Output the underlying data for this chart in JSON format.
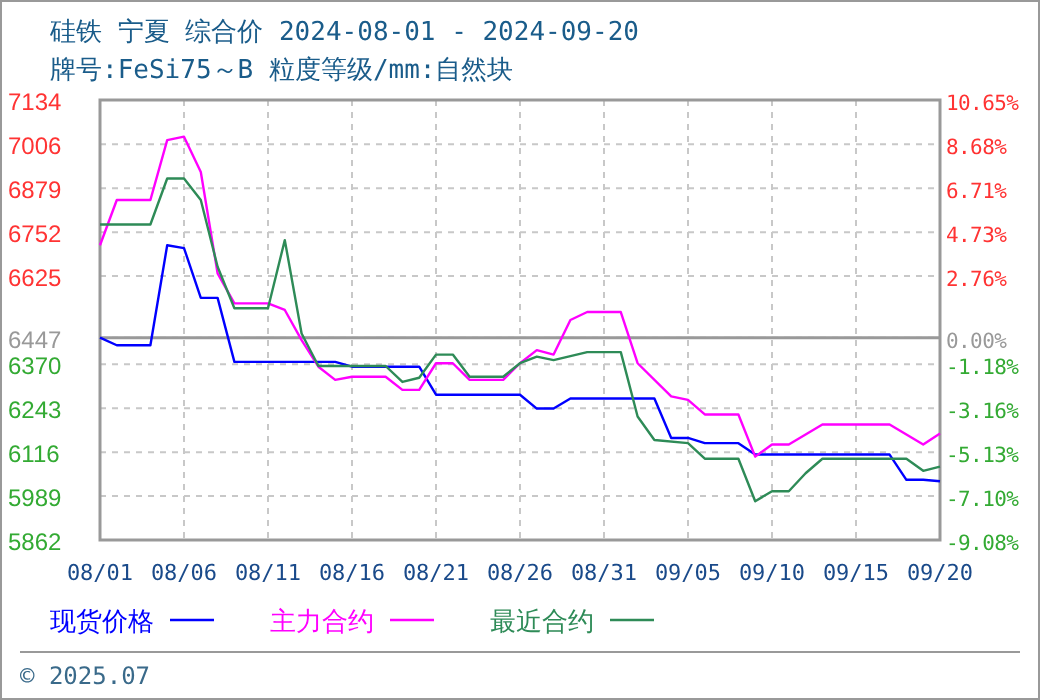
{
  "chart_data": {
    "type": "line",
    "title": "硅铁 宁夏 综合价 2024-08-01 - 2024-09-20",
    "subtitle": "牌号:FeSi75～B 粒度等级/mm:自然块",
    "xlim": [
      "2024-08-01",
      "2024-09-20"
    ],
    "xticks": [
      {
        "value": "2024-08-01",
        "label": "08/01"
      },
      {
        "value": "2024-08-06",
        "label": "08/06"
      },
      {
        "value": "2024-08-11",
        "label": "08/11"
      },
      {
        "value": "2024-08-16",
        "label": "08/16"
      },
      {
        "value": "2024-08-21",
        "label": "08/21"
      },
      {
        "value": "2024-08-26",
        "label": "08/26"
      },
      {
        "value": "2024-08-31",
        "label": "08/31"
      },
      {
        "value": "2024-09-05",
        "label": "09/05"
      },
      {
        "value": "2024-09-10",
        "label": "09/10"
      },
      {
        "value": "2024-09-15",
        "label": "09/15"
      },
      {
        "value": "2024-09-20",
        "label": "09/20"
      }
    ],
    "ylim": [
      5862,
      7134
    ],
    "yticks": [
      5862,
      5989,
      6116,
      6243,
      6370,
      6447,
      6625,
      6752,
      6879,
      7006,
      7134
    ],
    "y2lim": [
      -9.08,
      10.65
    ],
    "y2ticks": [
      {
        "value": -9.08,
        "label": "-9.08%"
      },
      {
        "value": -7.1,
        "label": "-7.10%"
      },
      {
        "value": -5.13,
        "label": "-5.13%"
      },
      {
        "value": -3.16,
        "label": "-3.16%"
      },
      {
        "value": -1.18,
        "label": "-1.18%"
      },
      {
        "value": 0,
        "label": "0.00%"
      },
      {
        "value": 2.76,
        "label": "2.76%"
      },
      {
        "value": 4.73,
        "label": "4.73%"
      },
      {
        "value": 6.71,
        "label": "6.71%"
      },
      {
        "value": 8.68,
        "label": "8.68%"
      },
      {
        "value": 10.65,
        "label": "10.65%"
      }
    ],
    "ref_lines": [
      {
        "axis": "y",
        "value": 6447,
        "color": "#999999"
      }
    ],
    "grid": true,
    "legend": "bottom",
    "line_style": "solid",
    "annotations": [
      "© 2025.07"
    ],
    "series": [
      {
        "name": "现货价格",
        "color": "#0000ff",
        "x": [
          "2024-08-01",
          "2024-08-02",
          "2024-08-04",
          "2024-08-05",
          "2024-08-06",
          "2024-08-07",
          "2024-08-08",
          "2024-08-09",
          "2024-08-15",
          "2024-08-16",
          "2024-08-20",
          "2024-08-21",
          "2024-08-26",
          "2024-08-27",
          "2024-08-28",
          "2024-08-29",
          "2024-09-03",
          "2024-09-04",
          "2024-09-05",
          "2024-09-06",
          "2024-09-08",
          "2024-09-09",
          "2024-09-17",
          "2024-09-18",
          "2024-09-19",
          "2024-09-20"
        ],
        "values": [
          6447,
          6425,
          6425,
          6714,
          6706,
          6562,
          6562,
          6377,
          6377,
          6363,
          6363,
          6282,
          6282,
          6242,
          6242,
          6271,
          6271,
          6157,
          6157,
          6142,
          6142,
          6109,
          6109,
          6036,
          6036,
          6032
        ]
      },
      {
        "name": "主力合约",
        "color": "#ff00ff",
        "x": [
          "2024-08-01",
          "2024-08-02",
          "2024-08-04",
          "2024-08-05",
          "2024-08-06",
          "2024-08-07",
          "2024-08-08",
          "2024-08-09",
          "2024-08-11",
          "2024-08-12",
          "2024-08-13",
          "2024-08-14",
          "2024-08-15",
          "2024-08-16",
          "2024-08-18",
          "2024-08-19",
          "2024-08-20",
          "2024-08-21",
          "2024-08-22",
          "2024-08-23",
          "2024-08-25",
          "2024-08-26",
          "2024-08-27",
          "2024-08-28",
          "2024-08-29",
          "2024-08-30",
          "2024-09-01",
          "2024-09-02",
          "2024-09-04",
          "2024-09-05",
          "2024-09-06",
          "2024-09-08",
          "2024-09-09",
          "2024-09-10",
          "2024-09-11",
          "2024-09-13",
          "2024-09-17",
          "2024-09-19",
          "2024-09-20"
        ],
        "values": [
          6714,
          6845,
          6845,
          7018,
          7028,
          6926,
          6633,
          6546,
          6546,
          6527,
          6440,
          6363,
          6325,
          6334,
          6334,
          6296,
          6296,
          6373,
          6373,
          6325,
          6325,
          6373,
          6411,
          6398,
          6498,
          6521,
          6521,
          6373,
          6277,
          6267,
          6225,
          6225,
          6103,
          6138,
          6138,
          6196,
          6196,
          6138,
          6170
        ]
      },
      {
        "name": "最近合约",
        "color": "#2e8b57",
        "x": [
          "2024-08-01",
          "2024-08-04",
          "2024-08-05",
          "2024-08-06",
          "2024-08-07",
          "2024-08-08",
          "2024-08-09",
          "2024-08-11",
          "2024-08-12",
          "2024-08-13",
          "2024-08-14",
          "2024-08-18",
          "2024-08-19",
          "2024-08-20",
          "2024-08-21",
          "2024-08-22",
          "2024-08-23",
          "2024-08-25",
          "2024-08-26",
          "2024-08-27",
          "2024-08-28",
          "2024-08-30",
          "2024-09-01",
          "2024-09-02",
          "2024-09-03",
          "2024-09-05",
          "2024-09-06",
          "2024-09-08",
          "2024-09-09",
          "2024-09-10",
          "2024-09-11",
          "2024-09-12",
          "2024-09-13",
          "2024-09-18",
          "2024-09-19",
          "2024-09-20"
        ],
        "values": [
          6774,
          6774,
          6907,
          6907,
          6845,
          6652,
          6532,
          6532,
          6729,
          6459,
          6365,
          6365,
          6319,
          6331,
          6398,
          6398,
          6334,
          6334,
          6373,
          6392,
          6382,
          6405,
          6405,
          6219,
          6151,
          6142,
          6097,
          6097,
          5974,
          6003,
          6003,
          6055,
          6097,
          6097,
          6062,
          6074
        ]
      }
    ]
  }
}
